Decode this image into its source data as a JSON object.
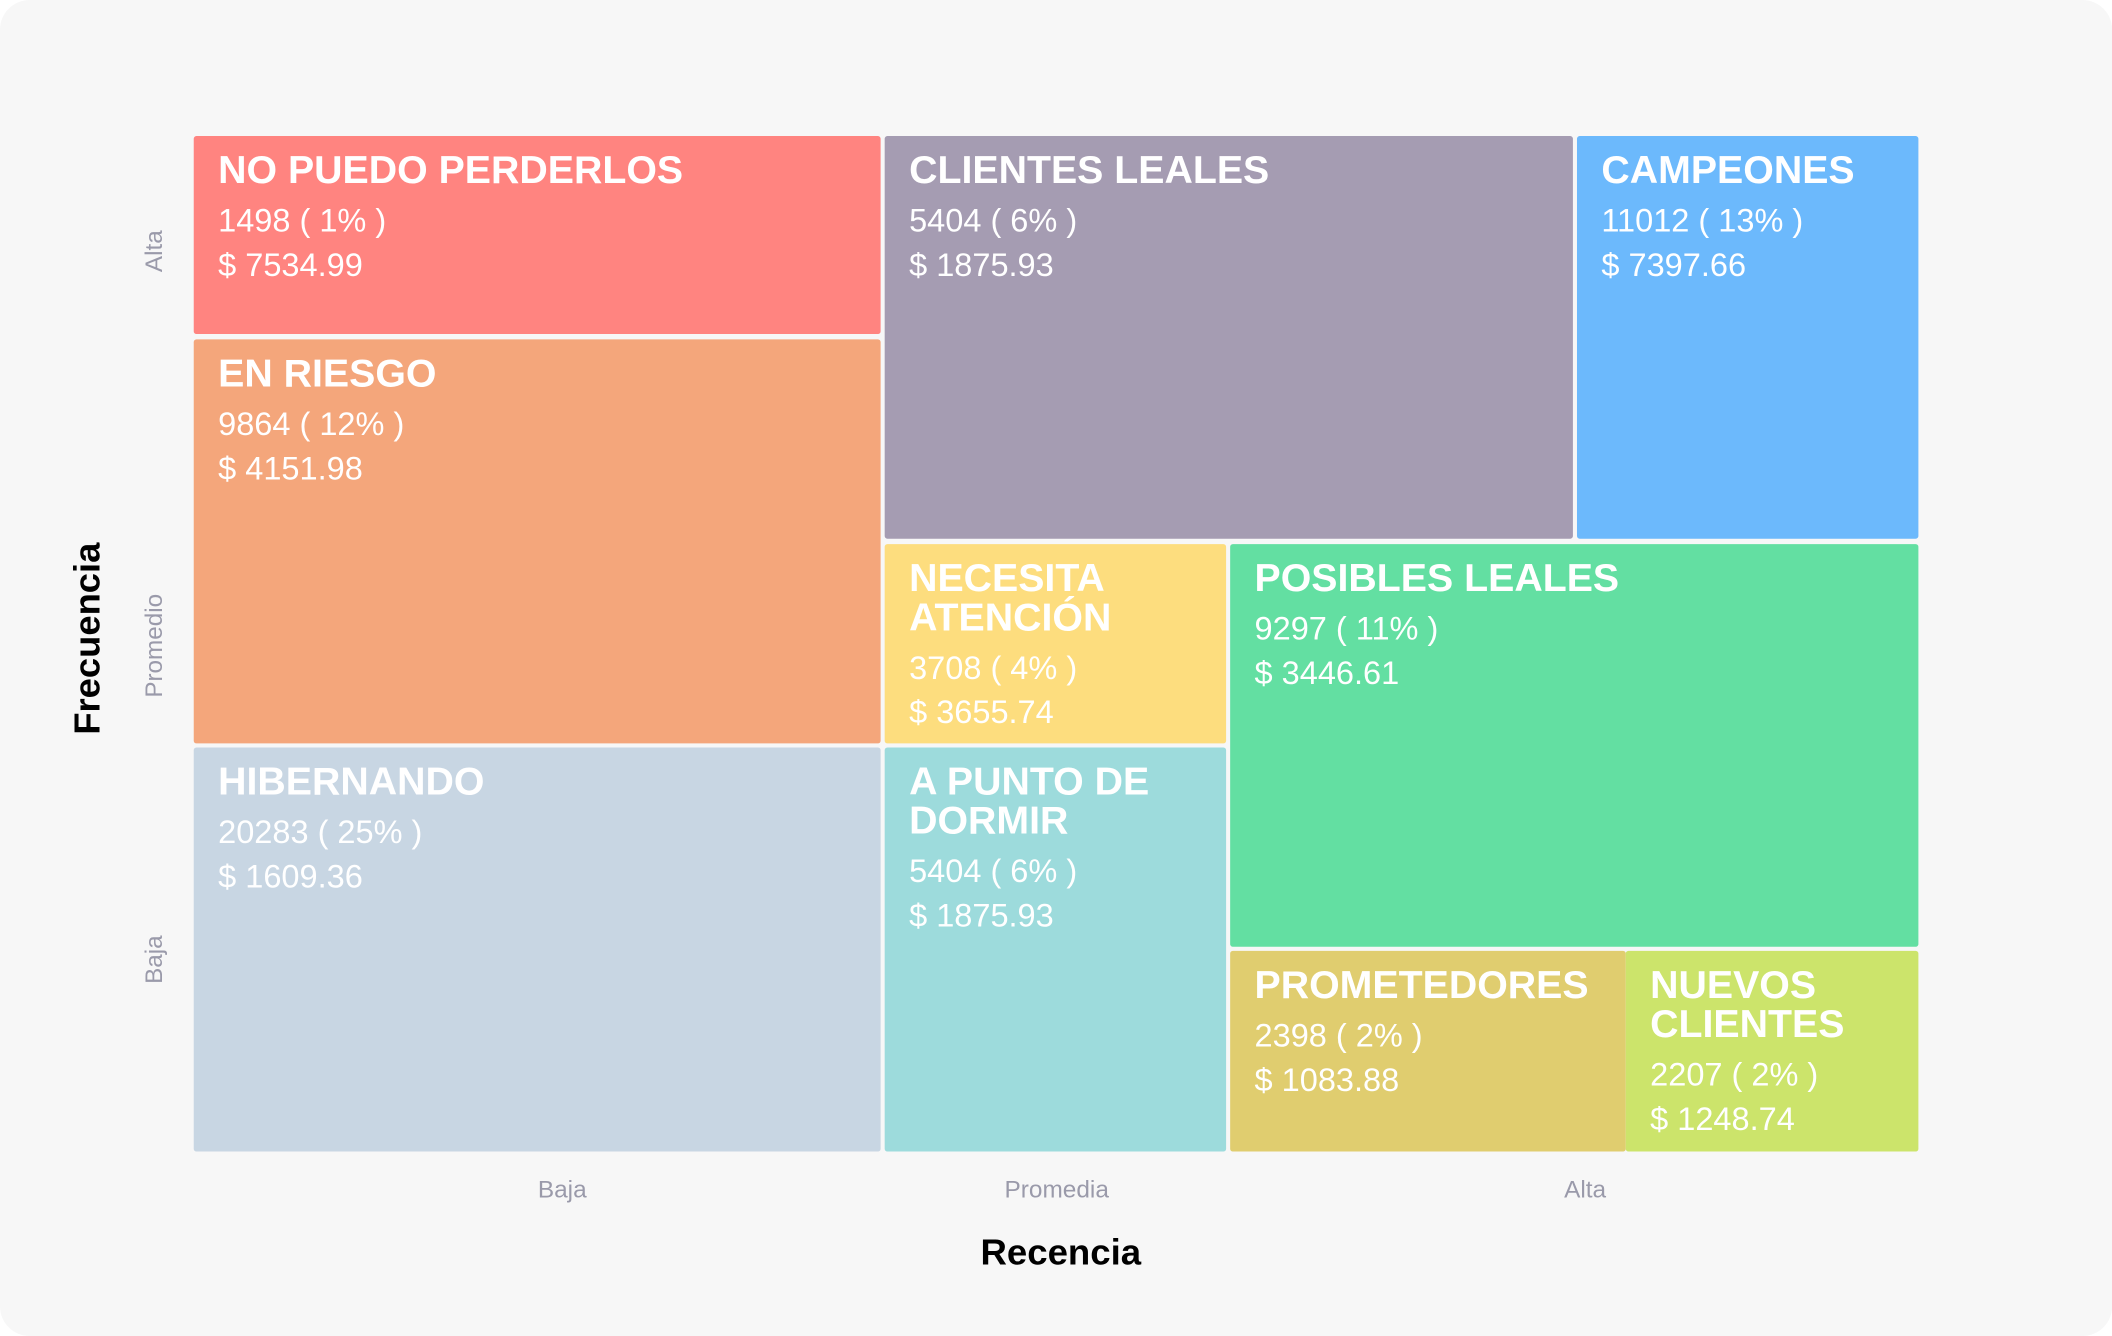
{
  "segments": [
    {
      "name": "NO PUEDO PERDERLOS",
      "count": "1498 ( 1% )",
      "revenue": "$ 7534.99"
    },
    {
      "name": "EN RIESGO",
      "count": "9864 ( 12% )",
      "revenue": "$ 4151.98"
    },
    {
      "name": "HIBERNANDO",
      "count": "20283 ( 25% )",
      "revenue": "$ 1609.36"
    },
    {
      "name": "CLIENTES LEALES",
      "count": "5404 ( 6% )",
      "revenue": "$ 1875.93"
    },
    {
      "name": "CAMPEONES",
      "count": "11012 ( 13% )",
      "revenue": "$ 7397.66"
    },
    {
      "name": "NECESITA ATENCIÓN",
      "count": "3708 ( 4% )",
      "revenue": "$ 3655.74"
    },
    {
      "name": "POSIBLES LEALES",
      "count": "9297 ( 11% )",
      "revenue": "$ 3446.61"
    },
    {
      "name": "A PUNTO DE DORMIR",
      "count": "5404 ( 6% )",
      "revenue": "$ 1875.93"
    },
    {
      "name": "PROMETEDORES",
      "count": "2398 ( 2% )",
      "revenue": "$ 1083.88"
    },
    {
      "name": "NUEVOS CLIENTES",
      "count": "2207 ( 2% )",
      "revenue": "$ 1248.74"
    }
  ],
  "y_axis": {
    "title": "Frecuencia",
    "labels": [
      "Alta",
      "Promedio",
      "Baja"
    ]
  },
  "x_axis": {
    "title": "Recencia",
    "labels": [
      "Baja",
      "Promedia",
      "Alta"
    ]
  }
}
